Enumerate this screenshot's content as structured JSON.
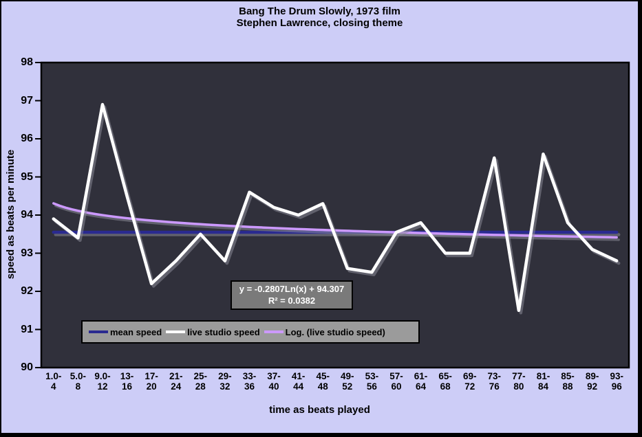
{
  "title": {
    "line1": "Bang The Drum Slowly, 1973 film",
    "line2": "Stephen Lawrence, closing theme"
  },
  "annotation": {
    "line1": "y = -0.2807Ln(x) + 94.307",
    "line2": "R² = 0.0382"
  },
  "axes": {
    "x_display": [
      [
        "1.0-",
        "4"
      ],
      [
        "5.0-",
        "8"
      ],
      [
        "9.0-",
        "12"
      ],
      [
        "13-",
        "16"
      ],
      [
        "17-",
        "20"
      ],
      [
        "21-",
        "24"
      ],
      [
        "25-",
        "28"
      ],
      [
        "29-",
        "32"
      ],
      [
        "33-",
        "36"
      ],
      [
        "37-",
        "40"
      ],
      [
        "41-",
        "44"
      ],
      [
        "45-",
        "48"
      ],
      [
        "49-",
        "52"
      ],
      [
        "53-",
        "56"
      ],
      [
        "57-",
        "60"
      ],
      [
        "61-",
        "64"
      ],
      [
        "65-",
        "68"
      ],
      [
        "69-",
        "72"
      ],
      [
        "73-",
        "76"
      ],
      [
        "77-",
        "80"
      ],
      [
        "81-",
        "84"
      ],
      [
        "85-",
        "88"
      ],
      [
        "89-",
        "92"
      ],
      [
        "93-",
        "96"
      ]
    ]
  },
  "chart_data": {
    "type": "line",
    "title": "Bang The Drum Slowly, 1973 film — Stephen Lawrence, closing theme",
    "xlabel": "time as beats played",
    "ylabel": "speed as beats per minute",
    "ylim": [
      90,
      98
    ],
    "y_ticks": [
      90,
      91,
      92,
      93,
      94,
      95,
      96,
      97,
      98
    ],
    "grid": false,
    "legend_position": "bottom-left inside",
    "categories": [
      "1.0-4",
      "5.0-8",
      "9.0-12",
      "13-16",
      "17-20",
      "21-24",
      "25-28",
      "29-32",
      "33-36",
      "37-40",
      "41-44",
      "45-48",
      "49-52",
      "53-56",
      "57-60",
      "61-64",
      "65-68",
      "69-72",
      "73-76",
      "77-80",
      "81-84",
      "85-88",
      "89-92",
      "93-96"
    ],
    "series": [
      {
        "name": "mean speed",
        "color": "#2a2a90",
        "values": [
          93.55,
          93.55,
          93.55,
          93.55,
          93.55,
          93.55,
          93.55,
          93.55,
          93.55,
          93.55,
          93.55,
          93.55,
          93.55,
          93.55,
          93.55,
          93.55,
          93.55,
          93.55,
          93.55,
          93.55,
          93.55,
          93.55,
          93.55,
          93.55
        ]
      },
      {
        "name": "live studio speed",
        "color": "#ffffff",
        "values": [
          93.9,
          93.4,
          96.9,
          94.5,
          92.2,
          92.8,
          93.5,
          92.8,
          94.6,
          94.2,
          94.0,
          94.3,
          92.6,
          92.5,
          93.55,
          93.8,
          93.0,
          93.0,
          95.5,
          91.5,
          95.6,
          93.8,
          93.1,
          92.8
        ]
      }
    ],
    "trendline": {
      "name": "Log. (live studio speed)",
      "of_series": "live studio speed",
      "type": "logarithmic",
      "color": "#cc99ff",
      "a": -0.2807,
      "b": 94.307,
      "equation": "y = -0.2807Ln(x) + 94.307",
      "r_squared": 0.0382
    }
  },
  "colors": {
    "page_bg": "#cdcdf7",
    "plot_bg": "#30303b",
    "axis": "#000000",
    "shadow": "#8b8b97",
    "legend_bg": "#9b9b9b",
    "annotation_bg": "#7a7a7a",
    "annotation_text": "#ffffff"
  }
}
